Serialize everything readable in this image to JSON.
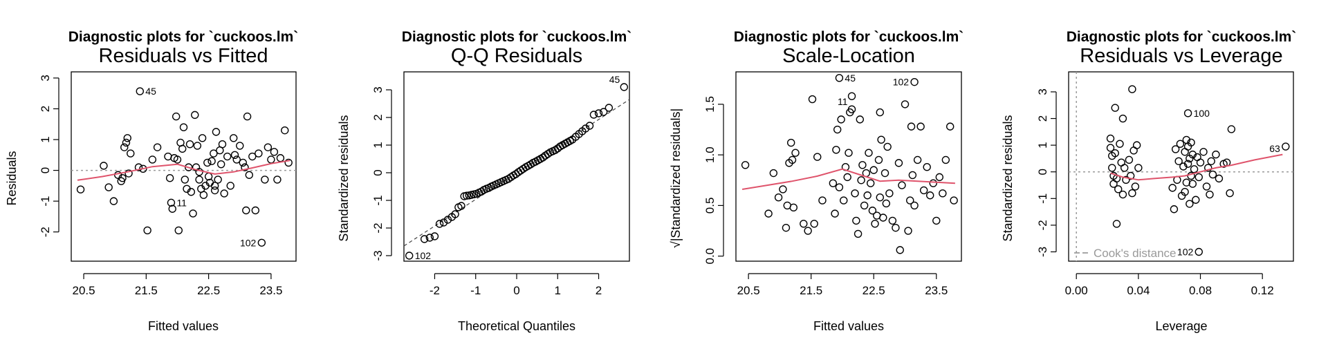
{
  "figure_title": "Diagnostic plots for `cuckoos.lm`",
  "colors": {
    "smooth": "#DF536B",
    "reference": "#999999",
    "points": "#000000"
  },
  "chart_data": [
    {
      "type": "scatter",
      "suptitle": "Diagnostic plots for `cuckoos.lm`",
      "title": "Residuals vs Fitted",
      "xlabel": "Fitted values",
      "ylabel": "Residuals",
      "xlim": [
        20.3,
        23.9
      ],
      "ylim": [
        -2.95,
        3.2
      ],
      "xticks": [
        20.5,
        21.5,
        22.5,
        23.5
      ],
      "yticks": [
        -2,
        -1,
        0,
        1,
        2,
        3
      ],
      "reference_line": {
        "type": "horizontal",
        "y": 0,
        "style": "dotted"
      },
      "smooth": {
        "x": [
          20.4,
          20.8,
          21.2,
          21.6,
          22.0,
          22.3,
          22.6,
          22.9,
          23.2,
          23.5,
          23.8
        ],
        "y": [
          -0.32,
          -0.2,
          -0.05,
          0.12,
          0.2,
          0.02,
          -0.12,
          -0.05,
          0.08,
          0.22,
          0.32
        ]
      },
      "points": {
        "x": [
          20.45,
          20.82,
          20.9,
          20.98,
          21.05,
          21.1,
          21.12,
          21.15,
          21.18,
          21.2,
          21.22,
          21.25,
          21.38,
          21.45,
          21.52,
          21.6,
          21.68,
          21.85,
          21.88,
          21.9,
          21.92,
          21.95,
          21.98,
          22.02,
          22.05,
          22.08,
          22.1,
          22.12,
          22.15,
          22.2,
          22.22,
          22.25,
          22.28,
          22.3,
          22.32,
          22.35,
          22.38,
          22.4,
          22.42,
          22.45,
          22.48,
          22.5,
          22.52,
          22.55,
          22.58,
          22.6,
          22.62,
          22.65,
          22.68,
          22.7,
          22.72,
          22.75,
          22.8,
          22.85,
          22.9,
          22.95,
          23.0,
          23.05,
          23.08,
          23.1,
          23.12,
          23.15,
          23.2,
          23.25,
          23.3,
          23.35,
          23.4,
          23.45,
          23.5,
          23.55,
          23.6,
          23.65,
          23.72,
          23.78,
          21.4,
          22.0,
          22.35,
          22.92,
          22.18,
          22.6
        ],
        "y": [
          -0.62,
          0.15,
          -0.55,
          -1.0,
          -0.15,
          -0.35,
          -0.25,
          0.75,
          0.9,
          1.05,
          -0.1,
          0.55,
          0.1,
          0.05,
          -1.95,
          0.35,
          0.75,
          0.45,
          -0.25,
          -1.05,
          -1.25,
          0.4,
          1.75,
          -1.95,
          0.9,
          0.7,
          1.4,
          -0.3,
          -0.6,
          0.85,
          -0.7,
          -1.4,
          1.8,
          0.1,
          0.8,
          -0.3,
          -0.6,
          1.05,
          -0.8,
          -0.5,
          0.25,
          -0.2,
          -0.4,
          0.3,
          0.55,
          -0.65,
          1.25,
          -0.3,
          0.65,
          0.2,
          0.85,
          -0.75,
          0.45,
          -0.5,
          1.05,
          0.35,
          0.8,
          0.25,
          0.1,
          -1.3,
          1.75,
          -0.15,
          0.45,
          -1.3,
          0.55,
          -2.35,
          -0.3,
          0.75,
          0.35,
          0.6,
          -0.3,
          0.4,
          1.3,
          0.25,
          2.57,
          0.35,
          -0.05,
          0.5,
          0.1,
          -0.5
        ],
        "labels": [
          {
            "i": 74,
            "text": "45",
            "pos": "right"
          },
          {
            "i": 19,
            "text": "11",
            "pos": "right"
          },
          {
            "i": 65,
            "text": "102",
            "pos": "left"
          }
        ]
      }
    },
    {
      "type": "scatter",
      "suptitle": "Diagnostic plots for `cuckoos.lm`",
      "title": "Q-Q Residuals",
      "xlabel": "Theoretical Quantiles",
      "ylabel": "Standardized residuals",
      "xlim": [
        -2.75,
        2.75
      ],
      "ylim": [
        -3.2,
        3.65
      ],
      "xticks": [
        -2,
        -1,
        0,
        1,
        2
      ],
      "yticks": [
        -3,
        -2,
        -1,
        0,
        1,
        2,
        3
      ],
      "reference_line": {
        "type": "diagonal",
        "x": [
          -2.75,
          2.75
        ],
        "y": [
          -2.65,
          2.65
        ],
        "style": "dashed"
      },
      "points": {
        "x": [
          -2.62,
          -2.25,
          -2.12,
          -2.0,
          -1.88,
          -1.78,
          -1.68,
          -1.58,
          -1.5,
          -1.42,
          -1.35,
          -1.28,
          -1.22,
          -1.16,
          -1.1,
          -1.04,
          -0.98,
          -0.92,
          -0.86,
          -0.8,
          -0.74,
          -0.68,
          -0.62,
          -0.56,
          -0.5,
          -0.44,
          -0.38,
          -0.32,
          -0.26,
          -0.2,
          -0.14,
          -0.08,
          -0.02,
          0.04,
          0.1,
          0.16,
          0.22,
          0.28,
          0.34,
          0.4,
          0.46,
          0.52,
          0.58,
          0.64,
          0.7,
          0.76,
          0.82,
          0.88,
          0.94,
          1.0,
          1.06,
          1.12,
          1.18,
          1.24,
          1.3,
          1.36,
          1.44,
          1.52,
          1.6,
          1.68,
          1.78,
          1.88,
          2.0,
          2.12,
          2.25,
          2.62
        ],
        "y": [
          -3.0,
          -2.4,
          -2.35,
          -2.3,
          -1.85,
          -1.8,
          -1.7,
          -1.6,
          -1.5,
          -1.25,
          -1.2,
          -0.85,
          -0.83,
          -0.82,
          -0.8,
          -0.78,
          -0.76,
          -0.72,
          -0.68,
          -0.62,
          -0.58,
          -0.55,
          -0.5,
          -0.46,
          -0.42,
          -0.38,
          -0.34,
          -0.3,
          -0.26,
          -0.22,
          -0.16,
          -0.1,
          -0.05,
          0.02,
          0.08,
          0.14,
          0.2,
          0.25,
          0.3,
          0.36,
          0.4,
          0.45,
          0.5,
          0.55,
          0.62,
          0.68,
          0.74,
          0.78,
          0.82,
          0.88,
          0.95,
          1.0,
          1.05,
          1.1,
          1.15,
          1.2,
          1.3,
          1.4,
          1.5,
          1.6,
          1.7,
          2.1,
          2.15,
          2.2,
          2.35,
          3.1
        ],
        "labels": [
          {
            "i": 65,
            "text": "45",
            "pos": "left-up"
          },
          {
            "i": 0,
            "text": "102",
            "pos": "right"
          }
        ]
      }
    },
    {
      "type": "scatter",
      "suptitle": "Diagnostic plots for `cuckoos.lm`",
      "title": "Scale-Location",
      "xlabel": "Fitted values",
      "ylabel": "√|Standardized residuals|",
      "xlim": [
        20.3,
        23.9
      ],
      "ylim": [
        -0.05,
        1.82
      ],
      "xticks": [
        20.5,
        21.5,
        22.5,
        23.5
      ],
      "yticks": [
        0.0,
        0.5,
        1.0,
        1.5
      ],
      "smooth": {
        "x": [
          20.4,
          20.8,
          21.2,
          21.6,
          22.0,
          22.3,
          22.6,
          22.9,
          23.2,
          23.5,
          23.8
        ],
        "y": [
          0.66,
          0.7,
          0.74,
          0.79,
          0.86,
          0.8,
          0.74,
          0.75,
          0.74,
          0.73,
          0.72
        ]
      },
      "points": {
        "x": [
          20.45,
          20.82,
          20.9,
          20.98,
          21.05,
          21.1,
          21.12,
          21.15,
          21.18,
          21.2,
          21.22,
          21.25,
          21.38,
          21.45,
          21.52,
          21.6,
          21.68,
          21.85,
          21.88,
          21.9,
          21.92,
          21.95,
          21.98,
          22.02,
          22.05,
          22.08,
          22.1,
          22.12,
          22.15,
          22.2,
          22.22,
          22.25,
          22.28,
          22.3,
          22.32,
          22.35,
          22.38,
          22.4,
          22.42,
          22.45,
          22.48,
          22.5,
          22.52,
          22.55,
          22.58,
          22.6,
          22.62,
          22.65,
          22.68,
          22.7,
          22.72,
          22.75,
          22.8,
          22.85,
          22.9,
          22.95,
          23.0,
          23.05,
          23.08,
          23.1,
          23.12,
          23.15,
          23.2,
          23.25,
          23.3,
          23.35,
          23.4,
          23.45,
          23.5,
          23.55,
          23.6,
          23.65,
          23.72,
          23.78,
          21.95,
          22.15,
          23.15,
          22.92,
          22.6,
          21.55
        ],
        "y": [
          0.9,
          0.42,
          0.82,
          0.58,
          0.66,
          0.28,
          0.5,
          0.92,
          1.12,
          0.95,
          0.48,
          1.02,
          0.32,
          0.25,
          1.55,
          0.98,
          0.55,
          0.72,
          0.42,
          1.05,
          1.25,
          0.68,
          1.35,
          0.55,
          0.88,
          0.78,
          1.02,
          1.42,
          1.58,
          0.62,
          0.35,
          0.22,
          1.35,
          0.75,
          0.9,
          0.5,
          0.82,
          0.6,
          1.02,
          0.72,
          0.45,
          0.85,
          0.32,
          0.4,
          0.95,
          0.58,
          1.15,
          0.38,
          0.82,
          0.52,
          1.08,
          0.62,
          0.35,
          0.28,
          0.92,
          0.7,
          1.5,
          0.25,
          0.55,
          1.28,
          0.8,
          0.5,
          0.95,
          1.28,
          0.65,
          0.88,
          0.6,
          0.72,
          0.35,
          0.78,
          0.62,
          0.95,
          1.28,
          0.55,
          1.76,
          1.45,
          1.72,
          0.06,
          1.42,
          0.32
        ],
        "labels": [
          {
            "i": 74,
            "text": "45",
            "pos": "right"
          },
          {
            "i": 75,
            "text": "11",
            "pos": "left-up"
          },
          {
            "i": 76,
            "text": "102",
            "pos": "left"
          }
        ]
      }
    },
    {
      "type": "scatter",
      "suptitle": "Diagnostic plots for `cuckoos.lm`",
      "title": "Residuals vs Leverage",
      "xlabel": "Leverage",
      "ylabel": "Standardized residuals",
      "xlim": [
        -0.005,
        0.14
      ],
      "ylim": [
        -3.35,
        3.75
      ],
      "xticks": [
        0.0,
        0.04,
        0.08,
        0.12
      ],
      "xtick_labels": [
        "0.00",
        "0.04",
        "0.08",
        "0.12"
      ],
      "yticks": [
        -3,
        -2,
        -1,
        0,
        1,
        2,
        3
      ],
      "reference_line": {
        "type": "horizontal",
        "y": 0,
        "style": "dotted"
      },
      "vertical_line": {
        "x": 0,
        "style": "dotted"
      },
      "legend": {
        "text": "Cook's distance",
        "position": "bottom-left"
      },
      "smooth": {
        "x": [
          0.022,
          0.03,
          0.04,
          0.05,
          0.062,
          0.07,
          0.08,
          0.09,
          0.1,
          0.115,
          0.133
        ],
        "y": [
          -0.05,
          -0.2,
          -0.3,
          -0.25,
          -0.2,
          -0.15,
          0.0,
          0.15,
          0.25,
          0.45,
          0.65
        ]
      },
      "points": {
        "x": [
          0.022,
          0.022,
          0.023,
          0.023,
          0.024,
          0.024,
          0.025,
          0.025,
          0.026,
          0.027,
          0.028,
          0.029,
          0.03,
          0.031,
          0.032,
          0.034,
          0.035,
          0.036,
          0.037,
          0.038,
          0.039,
          0.04,
          0.062,
          0.063,
          0.064,
          0.065,
          0.066,
          0.067,
          0.068,
          0.069,
          0.07,
          0.07,
          0.071,
          0.071,
          0.072,
          0.072,
          0.073,
          0.073,
          0.074,
          0.074,
          0.075,
          0.075,
          0.076,
          0.077,
          0.078,
          0.079,
          0.08,
          0.082,
          0.084,
          0.085,
          0.086,
          0.087,
          0.088,
          0.09,
          0.092,
          0.095,
          0.097,
          0.099,
          0.1,
          0.036,
          0.072,
          0.079,
          0.135,
          0.026,
          0.03
        ],
        "y": [
          1.25,
          0.9,
          0.6,
          0.15,
          -0.15,
          -0.45,
          2.4,
          0.7,
          -0.25,
          -0.65,
          1.05,
          0.35,
          -0.85,
          0.15,
          -0.3,
          0.45,
          -0.15,
          -0.8,
          0.8,
          -0.55,
          1.0,
          0.15,
          -0.6,
          -1.4,
          0.85,
          -0.3,
          0.4,
          1.05,
          -0.9,
          0.2,
          -0.75,
          0.75,
          1.2,
          -0.4,
          0.95,
          0.3,
          -1.2,
          0.5,
          -0.15,
          1.1,
          0.65,
          -0.45,
          0.1,
          -1.05,
          0.55,
          -0.2,
          0.35,
          0.75,
          -0.55,
          0.15,
          -0.85,
          0.4,
          -0.1,
          0.65,
          -0.25,
          0.3,
          0.35,
          -0.8,
          1.6,
          3.1,
          2.2,
          -3.0,
          0.95,
          -1.95,
          2.0
        ],
        "labels": [
          {
            "i": 60,
            "text": "100",
            "pos": "right"
          },
          {
            "i": 61,
            "text": "102",
            "pos": "left"
          },
          {
            "i": 62,
            "text": "63",
            "pos": "left-down"
          }
        ]
      }
    }
  ]
}
